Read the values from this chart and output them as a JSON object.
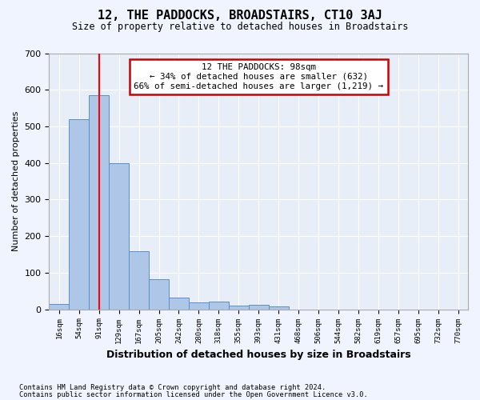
{
  "title": "12, THE PADDOCKS, BROADSTAIRS, CT10 3AJ",
  "subtitle": "Size of property relative to detached houses in Broadstairs",
  "xlabel": "Distribution of detached houses by size in Broadstairs",
  "ylabel": "Number of detached properties",
  "bin_labels": [
    "16sqm",
    "54sqm",
    "91sqm",
    "129sqm",
    "167sqm",
    "205sqm",
    "242sqm",
    "280sqm",
    "318sqm",
    "355sqm",
    "393sqm",
    "431sqm",
    "468sqm",
    "506sqm",
    "544sqm",
    "582sqm",
    "619sqm",
    "657sqm",
    "695sqm",
    "732sqm",
    "770sqm"
  ],
  "bar_heights": [
    15,
    520,
    585,
    400,
    160,
    83,
    32,
    18,
    22,
    10,
    12,
    8,
    0,
    0,
    0,
    0,
    0,
    0,
    0,
    0,
    0
  ],
  "bar_color": "#aec6e8",
  "bar_edge_color": "#5b8fc9",
  "red_line_x": 2,
  "annotation_text": "12 THE PADDOCKS: 98sqm\n← 34% of detached houses are smaller (632)\n66% of semi-detached houses are larger (1,219) →",
  "annotation_box_color": "#ffffff",
  "annotation_box_edge": "#cc0000",
  "ylim": [
    0,
    700
  ],
  "yticks": [
    0,
    100,
    200,
    300,
    400,
    500,
    600,
    700
  ],
  "footnote1": "Contains HM Land Registry data © Crown copyright and database right 2024.",
  "footnote2": "Contains public sector information licensed under the Open Government Licence v3.0.",
  "background_color": "#f0f4ff",
  "plot_bg_color": "#e8eef8"
}
